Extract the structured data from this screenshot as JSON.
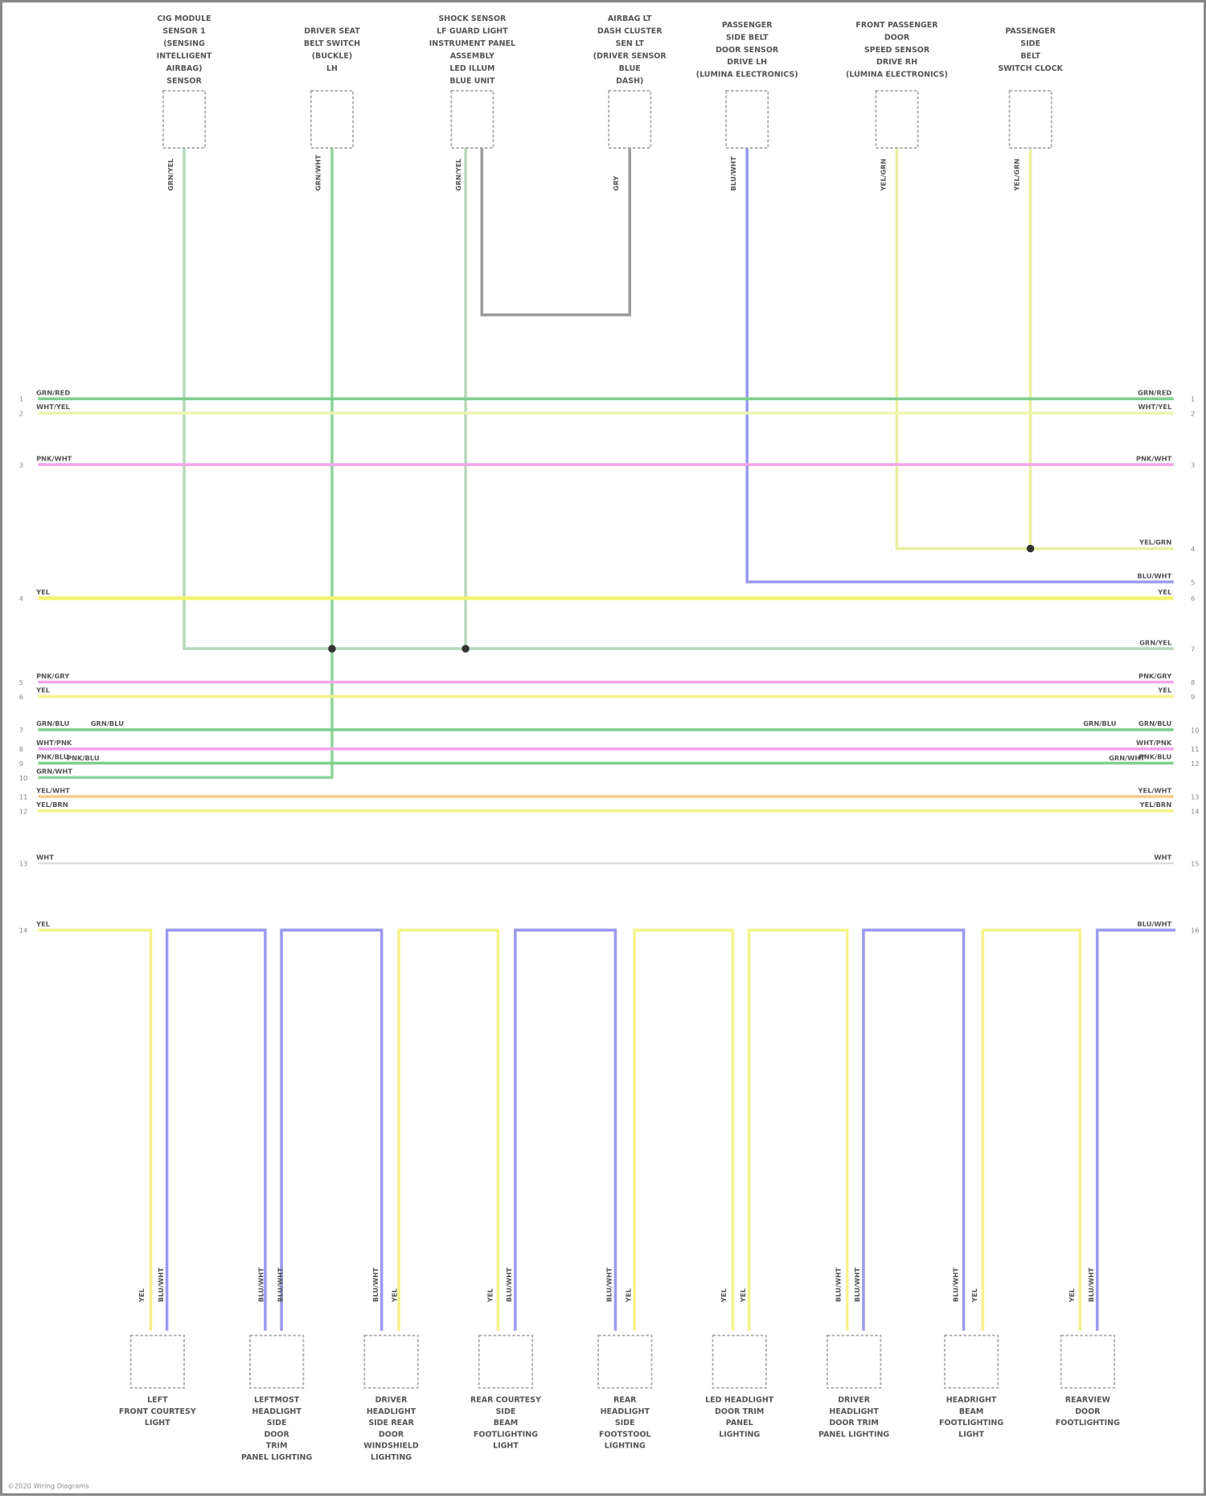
{
  "top_components": [
    {
      "name": [
        "CIG MODULE",
        "SENSOR 1",
        "(SENSING",
        "INTELLIGENT",
        "AIRBAG)",
        "SENSOR"
      ],
      "wire": "GRN/YEL"
    },
    {
      "name": [
        "DRIVER SEAT",
        "BELT SWITCH",
        "(BUCKLE)",
        "LH"
      ],
      "wire": "GRN/WHT"
    },
    {
      "name": [
        "SHOCK SENSOR",
        "LF GUARD LIGHT",
        "INSTRUMENT PANEL",
        "ASSEMBLY",
        "LED ILLUM",
        "BLUE UNIT"
      ],
      "wire": "GRN/YEL"
    },
    {
      "name": [
        "AIRBAG LT",
        "DASH CLUSTER",
        "SEN LT",
        "(DRIVER SENSOR",
        "BLUE",
        "DASH)"
      ],
      "wire": "GRY"
    },
    {
      "name": [
        "PASSENGER",
        "SIDE BELT",
        "DOOR SENSOR",
        "DRIVE LH",
        "(LUMINA ELECTRONICS)"
      ],
      "wire": "BLU/WHT"
    },
    {
      "name": [
        "FRONT PASSENGER",
        "DOOR",
        "SPEED SENSOR",
        "DRIVE RH",
        "(LUMINA ELECTRONICS)"
      ],
      "wire": "YEL/GRN"
    },
    {
      "name": [
        "PASSENGER",
        "SIDE",
        "BELT",
        "SWITCH CLOCK"
      ],
      "wire": "YEL/GRN"
    }
  ],
  "bus_left": [
    {
      "pin": "1",
      "wire": "GRN/RED"
    },
    {
      "pin": "2",
      "wire": "WHT/YEL"
    },
    {
      "pin": "3",
      "wire": "PNK/WHT"
    },
    {
      "pin": "4",
      "wire": "YEL"
    },
    {
      "pin": "5",
      "wire": "PNK/GRY"
    },
    {
      "pin": "6",
      "wire": "YEL"
    },
    {
      "pin": "7",
      "wire": "GRN/BLU"
    },
    {
      "pin": "8",
      "wire": "WHT/PNK"
    },
    {
      "pin": "9",
      "wire": "PNK/BLU"
    },
    {
      "pin": "10",
      "wire": "GRN/WHT"
    },
    {
      "pin": "11",
      "wire": "YEL/WHT"
    },
    {
      "pin": "12",
      "wire": "YEL/BRN"
    },
    {
      "pin": "13",
      "wire": "WHT"
    },
    {
      "pin": "14",
      "wire": "YEL"
    }
  ],
  "bus_right": [
    {
      "pin": "1",
      "wire": "GRN/RED"
    },
    {
      "pin": "2",
      "wire": "WHT/YEL"
    },
    {
      "pin": "3",
      "wire": "PNK/WHT"
    },
    {
      "pin": "4",
      "wire": "YEL/GRN"
    },
    {
      "pin": "5",
      "wire": "BLU/WHT"
    },
    {
      "pin": "6",
      "wire": "YEL"
    },
    {
      "pin": "7",
      "wire": "GRN/YEL"
    },
    {
      "pin": "8",
      "wire": "PNK/GRY"
    },
    {
      "pin": "9",
      "wire": "YEL"
    },
    {
      "pin": "10",
      "wire": "GRN/BLU"
    },
    {
      "pin": "11",
      "wire": "WHT/PNK"
    },
    {
      "pin": "12",
      "wire": "PNK/BLU"
    },
    {
      "pin": "13",
      "wire": "YEL/WHT"
    },
    {
      "pin": "14",
      "wire": "YEL/BRN"
    },
    {
      "pin": "15",
      "wire": "WHT"
    },
    {
      "pin": "16",
      "wire": "BLU/WHT"
    }
  ],
  "splice_labels": {
    "left": "GRN/BLU",
    "right": "GRN/BLU",
    "left2": "PNK/BLU",
    "right2": "GRN/WHT"
  },
  "bottom_components": [
    {
      "name": [
        "LEFT",
        "FRONT COURTESY",
        "LIGHT"
      ],
      "wires": [
        "YEL",
        "BLU/WHT"
      ]
    },
    {
      "name": [
        "LEFTMOST",
        "HEADLIGHT",
        "SIDE",
        "DOOR",
        "TRIM",
        "PANEL LIGHTING"
      ],
      "wires": [
        "BLU/WHT",
        "BLU/WHT"
      ]
    },
    {
      "name": [
        "DRIVER",
        "HEADLIGHT",
        "SIDE REAR",
        "DOOR",
        "WINDSHIELD",
        "LIGHTING"
      ],
      "wires": [
        "BLU/WHT",
        "YEL"
      ]
    },
    {
      "name": [
        "REAR COURTESY",
        "SIDE",
        "BEAM",
        "FOOTLIGHTING",
        "LIGHT"
      ],
      "wires": [
        "YEL",
        "BLU/WHT"
      ]
    },
    {
      "name": [
        "REAR",
        "HEADLIGHT",
        "SIDE",
        "FOOTSTOOL",
        "LIGHTING"
      ],
      "wires": [
        "BLU/WHT",
        "YEL"
      ]
    },
    {
      "name": [
        "LED HEADLIGHT",
        "DOOR TRIM",
        "PANEL",
        "LIGHTING"
      ],
      "wires": [
        "YEL",
        "YEL"
      ]
    },
    {
      "name": [
        "DRIVER",
        "HEADLIGHT",
        "DOOR TRIM",
        "PANEL LIGHTING"
      ],
      "wires": [
        "BLU/WHT",
        "BLU/WHT"
      ]
    },
    {
      "name": [
        "HEADRIGHT",
        "BEAM",
        "FOOTLIGHTING",
        "LIGHT"
      ],
      "wires": [
        "BLU/WHT",
        "YEL"
      ]
    },
    {
      "name": [
        "REARVIEW",
        "DOOR",
        "FOOTLIGHTING"
      ],
      "wires": [
        "YEL",
        "BLU/WHT"
      ]
    }
  ],
  "footer": "©2020 Wiring Diagrams",
  "colors": {
    "green": "#7fcf8f",
    "yellow": "#f4f48a",
    "pink": "#f1a6ea",
    "blue": "#9a9af0",
    "orange": "#f7c98a",
    "gray": "#aaaaaa"
  }
}
